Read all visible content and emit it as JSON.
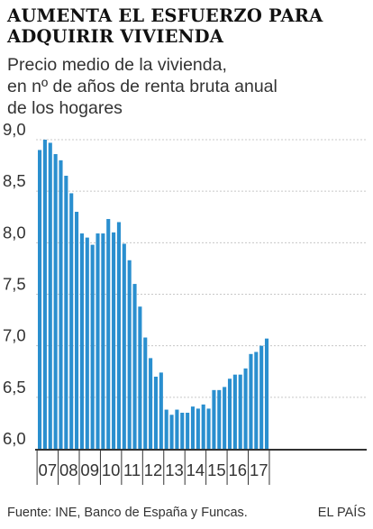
{
  "title_lines": [
    "AUMENTA EL ESFUERZO PARA",
    "ADQUIRIR VIVIENDA"
  ],
  "subtitle_lines": [
    "Precio medio de la vivienda,",
    "en nº de años de renta bruta anual",
    "de los hogares"
  ],
  "source": "Fuente: INE, Banco de España y Funcas.",
  "brand": "EL PAÍS",
  "colors": {
    "bar": "#2a8fcf",
    "grid": "#c8c8c8",
    "axis": "#333333"
  },
  "chart_data": {
    "type": "bar",
    "title": "AUMENTA EL ESFUERZO PARA ADQUIRIR VIVIENDA",
    "subtitle": "Precio medio de la vivienda, en nº de años de renta bruta anual de los hogares",
    "xlabel": "",
    "ylabel": "",
    "ylim": [
      6.0,
      9.0
    ],
    "grid": true,
    "yticks": [
      "9,0",
      "8,5",
      "8,0",
      "7,5",
      "7,0",
      "6,5",
      "6,0"
    ],
    "ytick_values": [
      9.0,
      8.5,
      8.0,
      7.5,
      7.0,
      6.5,
      6.0
    ],
    "year_labels": [
      "07",
      "08",
      "09",
      "10",
      "11",
      "12",
      "13",
      "14",
      "15",
      "16",
      "17"
    ],
    "categories": [
      "07-T1",
      "07-T2",
      "07-T3",
      "07-T4",
      "08-T1",
      "08-T2",
      "08-T3",
      "08-T4",
      "09-T1",
      "09-T2",
      "09-T3",
      "09-T4",
      "10-T1",
      "10-T2",
      "10-T3",
      "10-T4",
      "11-T1",
      "11-T2",
      "11-T3",
      "11-T4",
      "12-T1",
      "12-T2",
      "12-T3",
      "12-T4",
      "13-T1",
      "13-T2",
      "13-T3",
      "13-T4",
      "14-T1",
      "14-T2",
      "14-T3",
      "14-T4",
      "15-T1",
      "15-T2",
      "15-T3",
      "15-T4",
      "16-T1",
      "16-T2",
      "16-T3",
      "16-T4",
      "17-T1",
      "17-T2",
      "17-T3",
      "17-T4"
    ],
    "values": [
      8.9,
      9.0,
      8.97,
      8.86,
      8.8,
      8.65,
      8.48,
      8.3,
      8.09,
      8.05,
      7.98,
      8.09,
      8.09,
      8.23,
      8.1,
      8.2,
      7.99,
      7.83,
      7.6,
      7.38,
      7.08,
      6.88,
      6.7,
      6.74,
      6.38,
      6.33,
      6.38,
      6.35,
      6.35,
      6.41,
      6.39,
      6.43,
      6.39,
      6.57,
      6.57,
      6.6,
      6.68,
      6.72,
      6.72,
      6.78,
      6.92,
      6.94,
      7.0,
      7.07
    ]
  }
}
